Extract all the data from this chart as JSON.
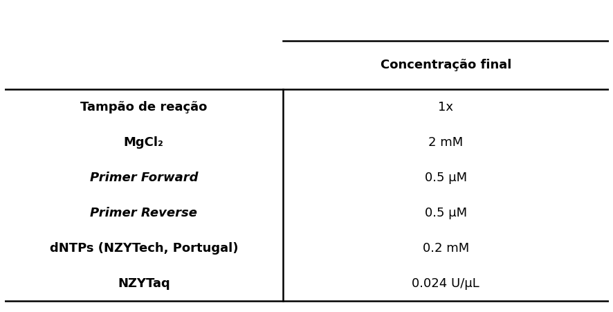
{
  "col1_header": "",
  "col2_header": "Concentração final",
  "rows": [
    [
      "Tampão de reação",
      "1x"
    ],
    [
      "MgCl₂",
      "2 mM"
    ],
    [
      "Primer Forward",
      "0.5 μM"
    ],
    [
      "Primer Reverse",
      "0.5 μM"
    ],
    [
      "dNTPs (NZYTech, Portugal)",
      "0.2 mM"
    ],
    [
      "NZYTaq",
      "0.024 U/μL"
    ]
  ],
  "italic_rows": [
    2,
    3
  ],
  "background_color": "#ffffff",
  "text_color": "#000000",
  "line_color": "#000000",
  "header_fontsize": 13,
  "body_fontsize": 13,
  "col_split": 0.46,
  "figsize": [
    8.87,
    4.51
  ],
  "dpi": 100
}
